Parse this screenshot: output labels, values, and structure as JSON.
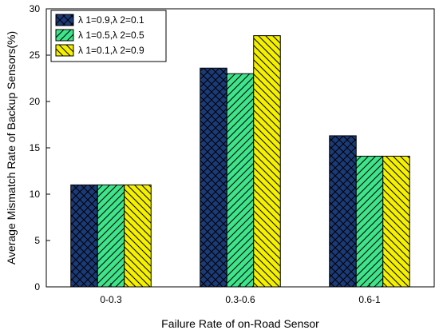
{
  "chart_data": {
    "type": "bar",
    "title": "",
    "xlabel": "Failure Rate of on-Road Sensor",
    "ylabel": "Average Mismatch Rate of Backup Sensors(%)",
    "categories": [
      "0-0.3",
      "0.3-0.6",
      "0.6-1"
    ],
    "ylim": [
      0,
      30
    ],
    "yticks": [
      0,
      5,
      10,
      15,
      20,
      25,
      30
    ],
    "legend_position": "top-left",
    "grid": false,
    "series": [
      {
        "name": "λ 1=0.9,λ 2=0.1",
        "values": [
          11.0,
          23.6,
          16.3
        ],
        "color": "#1b3a78",
        "pattern": "crosshatch"
      },
      {
        "name": "λ 1=0.5,λ 2=0.5",
        "values": [
          11.0,
          23.0,
          14.1
        ],
        "color": "#3ee38a",
        "pattern": "forward-diagonal"
      },
      {
        "name": "λ 1=0.1,λ 2=0.9",
        "values": [
          11.0,
          27.1,
          14.1
        ],
        "color": "#f4f000",
        "pattern": "back-diagonal"
      }
    ]
  }
}
